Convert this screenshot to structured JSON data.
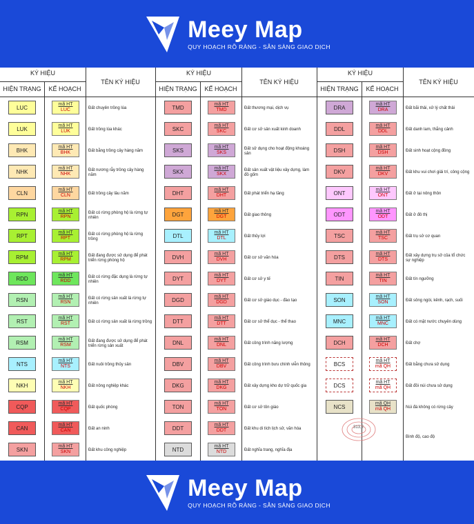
{
  "brand": {
    "name": "Meey Map",
    "tagline": "QUY HOẠCH RÕ RÀNG - SẴN SÀNG GIAO DỊCH"
  },
  "headers": {
    "symbol": "KÝ HIỆU",
    "current": "HIỆN TRẠNG",
    "plan": "KẾ HOẠCH",
    "name": "TÊN KÝ HIỆU"
  },
  "plan_prefix": "mã HT",
  "plan_prefix_qh": "mã QH",
  "columns": [
    {
      "rows": [
        {
          "code": "LUC",
          "color": "#fefe9a",
          "name": "Đất chuyên trồng lúa"
        },
        {
          "code": "LUK",
          "color": "#fefe9a",
          "name": "Đất trồng lúa khác"
        },
        {
          "code": "BHK",
          "color": "#fee9b4",
          "name": "Đất bằng trồng cây hàng năm"
        },
        {
          "code": "NHK",
          "color": "#fee9b4",
          "name": "Đất nương rẫy trồng cây hàng năm"
        },
        {
          "code": "CLN",
          "color": "#fed7a0",
          "name": "Đất trồng cây lâu năm"
        },
        {
          "code": "RPN",
          "color": "#a8f032",
          "name": "Đất có rừng phòng hộ là rừng tự nhiên"
        },
        {
          "code": "RPT",
          "color": "#a8f032",
          "name": "Đất có rừng phòng hộ là rừng trồng"
        },
        {
          "code": "RPM",
          "color": "#a8f032",
          "name": "Đất đang được sử dụng để phát triển rừng phòng hộ"
        },
        {
          "code": "RDD",
          "color": "#6ee65c",
          "name": "Đất có rừng đặc dụng là rừng tự nhiên"
        },
        {
          "code": "RSN",
          "color": "#b2f0b2",
          "name": "Đất có rừng sản xuất là rừng tự nhiên"
        },
        {
          "code": "RST",
          "color": "#b2f0b2",
          "name": "Đất có rừng sản xuất là rừng trồng"
        },
        {
          "code": "RSM",
          "color": "#b2f0b2",
          "name": "Đất đang được sử dụng để phát triển rừng sản xuất"
        },
        {
          "code": "NTS",
          "color": "#a8f0fe",
          "name": "Đất nuôi trồng thủy sản"
        },
        {
          "code": "NKH",
          "color": "#fefeb4",
          "name": "Đất nông nghiệp khác"
        },
        {
          "code": "CQP",
          "color": "#f05a5a",
          "name": "Đất quốc phòng"
        },
        {
          "code": "CAN",
          "color": "#f05a5a",
          "name": "Đất an ninh"
        },
        {
          "code": "SKN",
          "color": "#f4a0a0",
          "name": "Đất khu công nghiệp"
        }
      ]
    },
    {
      "rows": [
        {
          "code": "TMD",
          "color": "#f4a0a0",
          "name": "Đất thương mại, dịch vụ"
        },
        {
          "code": "SKC",
          "color": "#f4a0a0",
          "name": "Đất cơ sở sản xuất kinh doanh"
        },
        {
          "code": "SKS",
          "color": "#cfa8d6",
          "name": "Đất sử dụng cho hoạt động khoáng sản"
        },
        {
          "code": "SKX",
          "color": "#cfa8d6",
          "name": "Đất sản xuất vật liệu xây dựng, làm đồ gốm"
        },
        {
          "code": "DHT",
          "color": "#f4a0a0",
          "name": "Đất phát triển hạ tầng"
        },
        {
          "code": "DGT",
          "color": "#fea43c",
          "name": "Đất giao thông"
        },
        {
          "code": "DTL",
          "color": "#a8f0fe",
          "name": "Đất thủy lợi"
        },
        {
          "code": "DVH",
          "color": "#f4a0a0",
          "name": "Đất cơ sở văn hóa"
        },
        {
          "code": "DYT",
          "color": "#f4a0a0",
          "name": "Đất cơ sở y tế"
        },
        {
          "code": "DGD",
          "color": "#f4a0a0",
          "name": "Đất cơ sở giáo dục - đào tạo"
        },
        {
          "code": "DTT",
          "color": "#f4a0a0",
          "name": "Đất cơ sở thể dục - thể thao"
        },
        {
          "code": "DNL",
          "color": "#f4a0a0",
          "name": "Đất công trình năng lượng"
        },
        {
          "code": "DBV",
          "color": "#f4a0a0",
          "name": "Đất công trình bưu chính viễn thông"
        },
        {
          "code": "DKG",
          "color": "#f4a0a0",
          "name": "Đất xây dựng kho dự trữ quốc gia"
        },
        {
          "code": "TON",
          "color": "#f4a0a0",
          "name": "Đất cơ sở tôn giáo"
        },
        {
          "code": "DDT",
          "color": "#f4a0a0",
          "name": "Đất khu di tích lịch sử, văn hóa"
        },
        {
          "code": "NTD",
          "color": "#dcdcdc",
          "name": "Đất nghĩa trang, nghĩa địa"
        }
      ]
    },
    {
      "rows": [
        {
          "code": "DRA",
          "color": "#cfa8d6",
          "name": "Đất bãi thải, xử lý chất thải"
        },
        {
          "code": "DDL",
          "color": "#f4a0a0",
          "name": "Đất danh lam, thắng cảnh"
        },
        {
          "code": "DSH",
          "color": "#f4a0a0",
          "name": "Đất sinh hoạt cộng đồng"
        },
        {
          "code": "DKV",
          "color": "#f4a0a0",
          "name": "Đất khu vui chơi giải trí, công cộng"
        },
        {
          "code": "ONT",
          "color": "#fec8fe",
          "name": "Đất ở tại nông thôn"
        },
        {
          "code": "ODT",
          "color": "#fe96fe",
          "name": "Đất ở đô thị"
        },
        {
          "code": "TSC",
          "color": "#f4a0a0",
          "name": "Đất trụ sở cơ quan"
        },
        {
          "code": "DTS",
          "color": "#f4a0a0",
          "name": "Đất xây dựng trụ sở của tổ chức sự nghiệp"
        },
        {
          "code": "TIN",
          "color": "#f4a0a0",
          "name": "Đất tín ngưỡng"
        },
        {
          "code": "SON",
          "color": "#a8f0fe",
          "name": "Đất sông ngòi, kênh, rạch, suối"
        },
        {
          "code": "MNC",
          "color": "#a8f0fe",
          "name": "Đất có mặt nước chuyên dùng"
        },
        {
          "code": "DCH",
          "color": "#f4a0a0",
          "name": "Đất chợ"
        },
        {
          "code": "BCS",
          "color": "#ffffff",
          "name": "Đất bằng chưa sử dụng",
          "dashed": true
        },
        {
          "code": "DCS",
          "color": "#ffffff",
          "name": "Đất đồi núi chưa sử dụng",
          "dashed": true
        },
        {
          "code": "NCS",
          "color": "#e8e2c8",
          "name": "Núi đá không có rừng cây",
          "qh": true
        },
        {
          "code": "",
          "color": "#ffffff",
          "name": "Bình độ, cao độ",
          "contour": "313,2"
        }
      ]
    }
  ]
}
